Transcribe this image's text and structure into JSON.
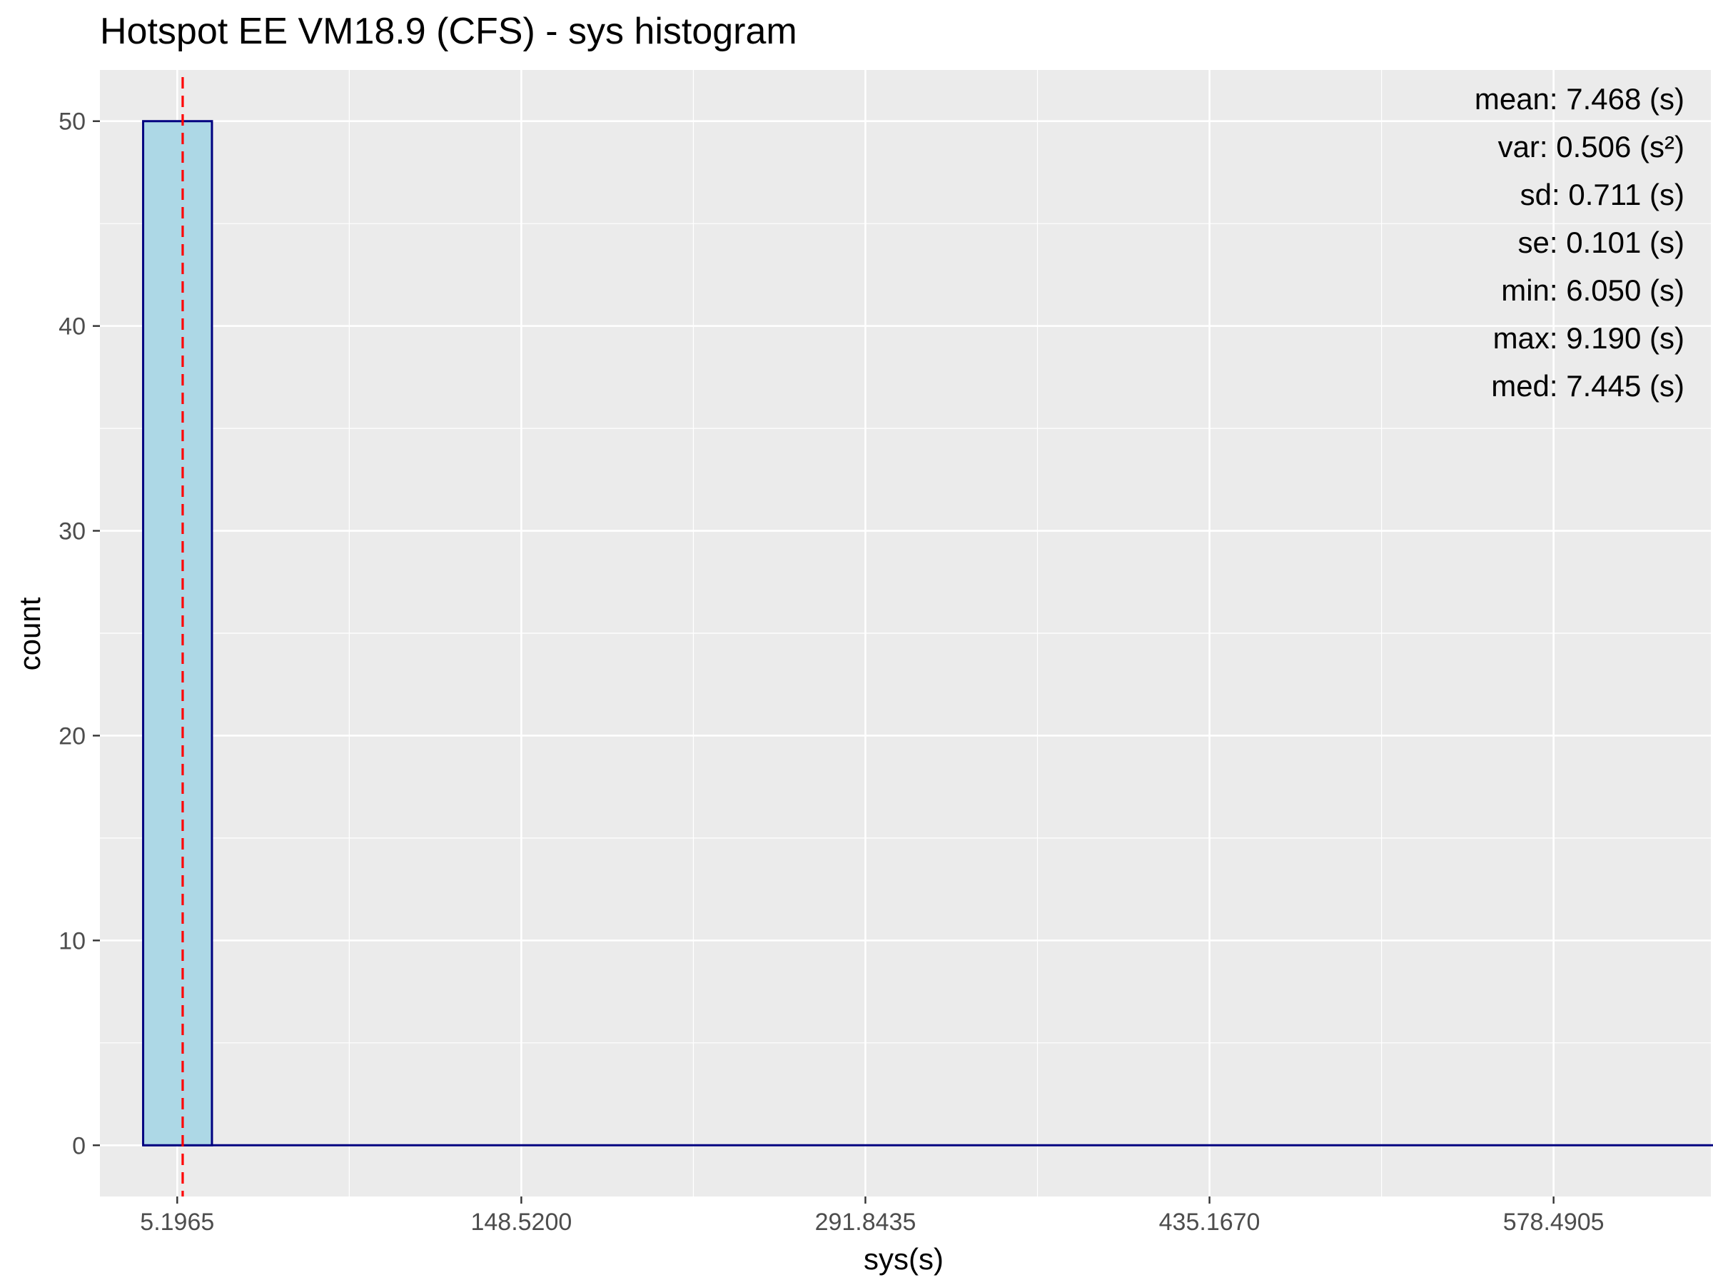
{
  "chart_data": {
    "type": "histogram",
    "title": "Hotspot EE VM18.9 (CFS) - sys histogram",
    "xlabel": "sys(s)",
    "ylabel": "count",
    "x_ticks": [
      5.1965,
      148.52,
      291.8435,
      435.167,
      578.4905
    ],
    "x_tick_labels": [
      "5.1965",
      "148.5200",
      "291.8435",
      "435.1670",
      "578.4905"
    ],
    "xlim": [
      -27,
      644
    ],
    "y_ticks": [
      0,
      10,
      20,
      30,
      40,
      50
    ],
    "y_tick_labels": [
      "0",
      "10",
      "20",
      "30",
      "40",
      "50"
    ],
    "ylim": [
      -2.5,
      52.5
    ],
    "bin_width": 28.66,
    "bins": [
      {
        "x_start": -9.0,
        "x_end": 19.66,
        "count": 50
      }
    ],
    "baseline_range": [
      -9.0,
      653
    ],
    "mean_line": 7.468,
    "grid": true,
    "stats": [
      "mean: 7.468 (s)",
      "var: 0.506 (s²)",
      "sd: 0.711 (s)",
      "se: 0.101 (s)",
      "min: 6.050 (s)",
      "max: 9.190 (s)",
      "med: 7.445 (s)"
    ],
    "colors": {
      "panel": "#ebebeb",
      "grid": "#ffffff",
      "bar_fill": "#add8e6",
      "bar_stroke": "#000080",
      "mean_line": "#ff0000"
    }
  }
}
